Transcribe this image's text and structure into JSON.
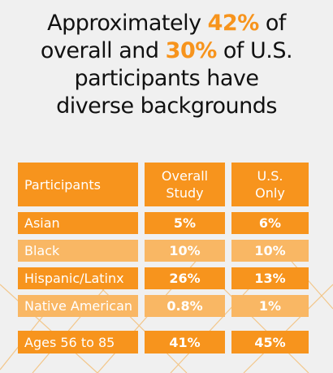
{
  "headline": {
    "line1_pre": "Approximately ",
    "overall_pct": "42%",
    "line1_post": " of",
    "line2_pre": "overall and ",
    "us_pct": "30%",
    "line2_post": " of U.S.",
    "line3": "participants have",
    "line4": "diverse backgrounds"
  },
  "table": {
    "headers": {
      "col1": "Participants",
      "col2_line1": "Overall",
      "col2_line2": "Study",
      "col3_line1": "U.S.",
      "col3_line2": "Only"
    },
    "rows": [
      {
        "label": "Asian",
        "overall": "5%",
        "us": "6%"
      },
      {
        "label": "Black",
        "overall": "10%",
        "us": "10%"
      },
      {
        "label": "Hispanic/Latinx",
        "overall": "26%",
        "us": "13%"
      },
      {
        "label": "Native American",
        "overall": "0.8%",
        "us": "1%"
      },
      {
        "label": "Ages 56 to 85",
        "overall": "41%",
        "us": "45%"
      }
    ]
  },
  "colors": {
    "accent": "#f7941d",
    "accent_light": "#f9b764",
    "background": "#f0f0f0"
  }
}
